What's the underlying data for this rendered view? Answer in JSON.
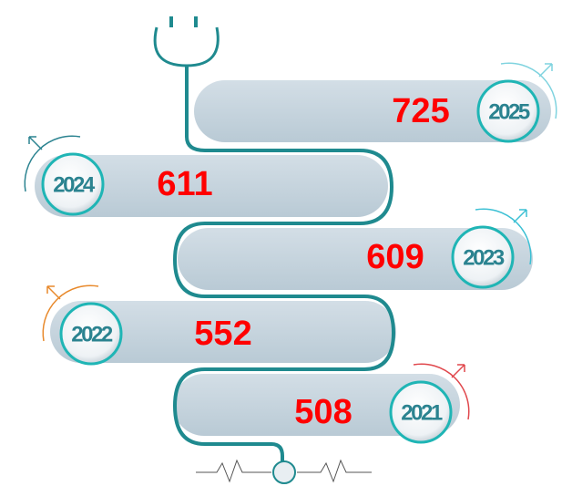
{
  "items": [
    {
      "year": "2025",
      "value": 725
    },
    {
      "year": "2024",
      "value": 611
    },
    {
      "year": "2023",
      "value": 609
    },
    {
      "year": "2022",
      "value": 552
    },
    {
      "year": "2021",
      "value": 508
    }
  ]
}
